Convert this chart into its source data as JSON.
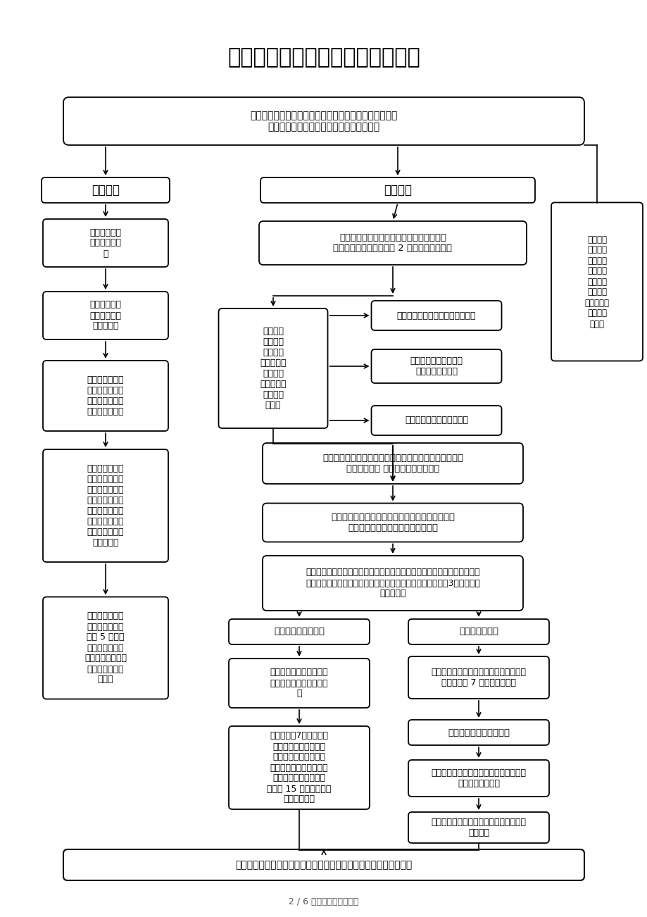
{
  "title": "盗窃电能行为处罚对外受理流程图",
  "footer": "2 / 6 文档可自由编辑打印",
  "top_box_text": "依据检查职权或通过投诉、申诉、举报、其他机关移送、\n上级机关交办等途径发现电力方面违法行为",
  "easy_header": "简易程序",
  "general_header": "一般程序",
  "L1": "两名以上执法\n人员出示执法\n证",
  "L2": "当场查清违法\n事实收集和保\n存必要证据",
  "L3": "告知当事人违法\n事实处罚理由和\n依据，并听取当\n事人陈述、申辩",
  "L4": "填写电力行政处\n罚（当场）决定\n书，当场交付当\n事人，并告知当\n事人如不服从行\n政处罚决定可依\n法申请行政复议\n或提起诉讼",
  "L5": "执法人员在当场\n作出处罚决定之\n日起 5 日内将\n《电力行政处罚\n（当场）决定书》\n报市经信委电力\n科备案",
  "R1": "执法人员填写《电力行政处罚立案审批表》\n报委领导批准立案，确定 2 名及以上办案人员",
  "R2": "执法人员\n调查取证\n编制《询\n问笔录》、\n《现场调\n查（检查）\n及取证记\n录》等",
  "S1": "认为违法事实不成立的，予以销案",
  "S2": "不属于本机关管辖的，\n移交其他行政机关",
  "S3": "涉嫌犯罪的，移送司法机关",
  "FR": "决定不予\n立案的，\n经市经信\n委主任批\n准，将结\n果告知具\n体投诉人、\n申诉人、\n举报人",
  "R3": "认为违法事实成立的，执法人员填写《电力行政处罚案件\n处理审批表》 连同案卷报电力科审核",
  "R4": "《电力行政处罚案件处理审批表》按规定程序报批\n重大疑难案件提交会议集体讨论决定",
  "R5": "执法人员编制《电力行政处罚事先告知书》送达当事人，告知拟给予的行政\n处罚内容及其事实、理由和依据并告知当事人可在收到告知书3日内，进行\n陈述、申辩",
  "BH_L": "当事人不要求听证的",
  "BH_R": "符合听证条件的",
  "LB1": "依法制作《电力行政处罚\n决定书》，按规定程序报\n批",
  "LB2": "送达执行，7日内将《电\n力行政处罚决定书》送\n达当事人或代收人，签\n署《送达回执》，当事人\n在收到行政处罚决定书\n之日起 15 日内，到指定\n银行缴纳罚款",
  "RB1": "当事人要求举行听证的，电保办组织听证\n会，听证会 7 日前送达通知书",
  "RB2": "电保办制作《听证笔录》",
  "RB3": "当事人理由或证据成立，电保调整原作出\n的行政处罚的决定",
  "RB4": "如当事人拒不执行处罚决定，则申请法院\n强制执法",
  "FINAL": "执法人员填写《电力行政处罚结案报告》报电力科批准后，立卷归档"
}
